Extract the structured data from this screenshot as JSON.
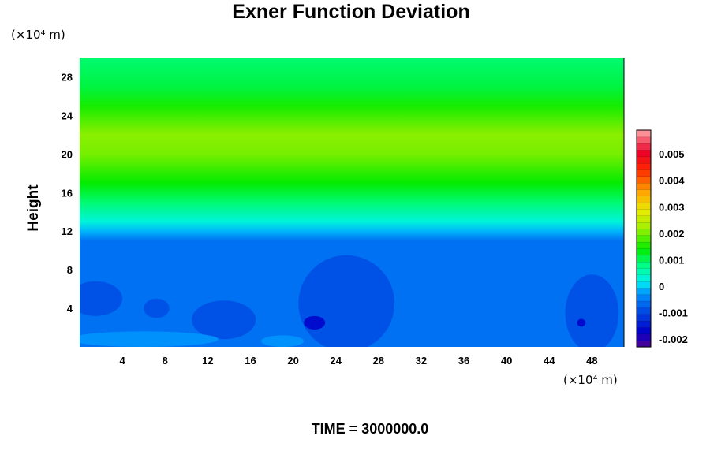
{
  "chart_data": {
    "type": "heatmap",
    "title": "Exner Function Deviation",
    "ylabel": "Height",
    "xlabel": "",
    "x_unit": "(×10⁴ m)",
    "y_unit": "(×10⁴ m)",
    "xlim": [
      0,
      51
    ],
    "ylim": [
      0,
      30
    ],
    "x_ticks": [
      "4",
      "8",
      "12",
      "16",
      "20",
      "24",
      "28",
      "32",
      "36",
      "40",
      "44",
      "48"
    ],
    "y_ticks": [
      "4",
      "8",
      "12",
      "16",
      "20",
      "24",
      "28"
    ],
    "colorbar": {
      "range": [
        -0.0023,
        0.0059
      ],
      "ticks": [
        "0.005",
        "0.004",
        "0.003",
        "0.002",
        "0.001",
        "0",
        "-0.001",
        "-0.002"
      ]
    },
    "vertical_profile": [
      {
        "height": 0,
        "value": -0.0006
      },
      {
        "height": 11,
        "value": -0.0006
      },
      {
        "height": 12,
        "value": -0.0001
      },
      {
        "height": 13,
        "value": 0.0003
      },
      {
        "height": 15,
        "value": 0.0009
      },
      {
        "height": 17,
        "value": 0.0014
      },
      {
        "height": 20,
        "value": 0.002
      },
      {
        "height": 22,
        "value": 0.0021
      },
      {
        "height": 25,
        "value": 0.0015
      },
      {
        "height": 27,
        "value": 0.0011
      },
      {
        "height": 30,
        "value": 0.0009
      }
    ],
    "lower_features": [
      {
        "x": 25,
        "y": 4.5,
        "rx": 4.5,
        "ry": 5,
        "value": -0.0009
      },
      {
        "x": 22,
        "y": 2.5,
        "rx": 1,
        "ry": 0.7,
        "value": -0.0016
      },
      {
        "x": 13.5,
        "y": 2.8,
        "rx": 3,
        "ry": 2,
        "value": -0.0009
      },
      {
        "x": 7.2,
        "y": 4,
        "rx": 1.2,
        "ry": 1,
        "value": -0.0009
      },
      {
        "x": 48,
        "y": 3.5,
        "rx": 2.5,
        "ry": 4,
        "value": -0.0009
      },
      {
        "x": 47,
        "y": 2.5,
        "rx": 0.4,
        "ry": 0.4,
        "value": -0.0016
      },
      {
        "x": 1.5,
        "y": 5,
        "rx": 2.5,
        "ry": 1.8,
        "value": -0.0009
      },
      {
        "x": 6,
        "y": 0.8,
        "rx": 7,
        "ry": 0.8,
        "value": -0.0003
      },
      {
        "x": 19,
        "y": 0.6,
        "rx": 2,
        "ry": 0.6,
        "value": -0.0003
      }
    ]
  },
  "footer": {
    "time_label": "TIME = 3000000.0"
  }
}
